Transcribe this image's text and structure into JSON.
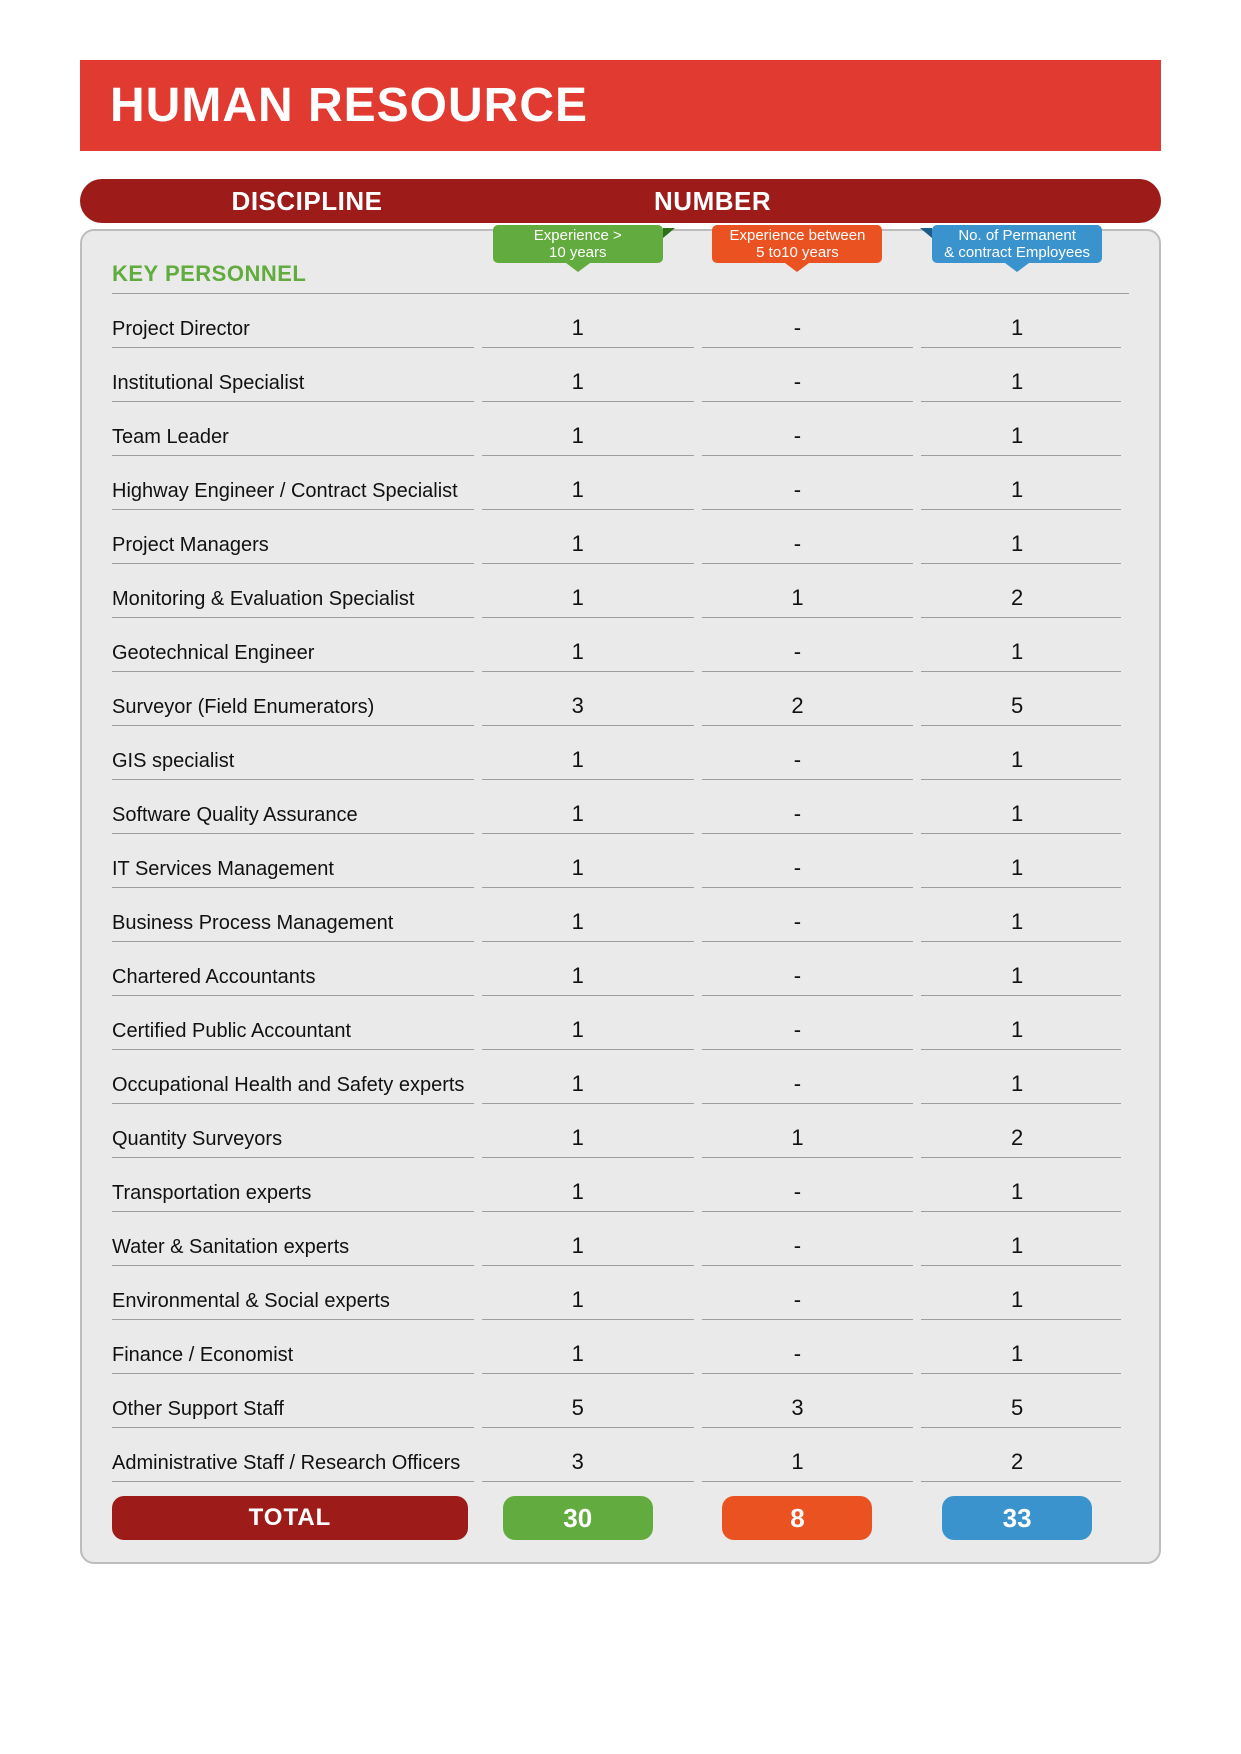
{
  "title": "HUMAN RESOURCE",
  "header": {
    "discipline": "DISCIPLINE",
    "number": "NUMBER"
  },
  "column_tabs": {
    "exp10": {
      "line1": "Experience >",
      "line2": "10 years",
      "color": "#62ab3e"
    },
    "exp5_10": {
      "line1": "Experience between",
      "line2": "5 to10 years",
      "color": "#ea5221"
    },
    "perm": {
      "line1": "No. of Permanent",
      "line2": "& contract Employees",
      "color": "#3a93cc"
    }
  },
  "section_label": "KEY PERSONNEL",
  "rows": [
    {
      "label": "Project Director",
      "c1": "1",
      "c2": "-",
      "c3": "1"
    },
    {
      "label": "Institutional Specialist",
      "c1": "1",
      "c2": "-",
      "c3": "1"
    },
    {
      "label": "Team Leader",
      "c1": "1",
      "c2": "-",
      "c3": "1"
    },
    {
      "label": "Highway Engineer / Contract Specialist",
      "c1": "1",
      "c2": "-",
      "c3": "1"
    },
    {
      "label": "Project Managers",
      "c1": "1",
      "c2": "-",
      "c3": "1"
    },
    {
      "label": "Monitoring & Evaluation Specialist",
      "c1": "1",
      "c2": "1",
      "c3": "2"
    },
    {
      "label": "Geotechnical Engineer",
      "c1": "1",
      "c2": "-",
      "c3": "1"
    },
    {
      "label": "Surveyor (Field Enumerators)",
      "c1": "3",
      "c2": "2",
      "c3": "5"
    },
    {
      "label": "GIS specialist",
      "c1": "1",
      "c2": "-",
      "c3": "1"
    },
    {
      "label": "Software Quality Assurance",
      "c1": "1",
      "c2": "-",
      "c3": "1"
    },
    {
      "label": "IT Services Management",
      "c1": "1",
      "c2": "-",
      "c3": "1"
    },
    {
      "label": "Business Process Management",
      "c1": "1",
      "c2": "-",
      "c3": "1"
    },
    {
      "label": "Chartered Accountants",
      "c1": "1",
      "c2": "-",
      "c3": "1"
    },
    {
      "label": "Certified Public Accountant",
      "c1": "1",
      "c2": "-",
      "c3": "1"
    },
    {
      "label": "Occupational Health and Safety experts",
      "c1": "1",
      "c2": "-",
      "c3": "1"
    },
    {
      "label": "Quantity Surveyors",
      "c1": "1",
      "c2": "1",
      "c3": "2"
    },
    {
      "label": "Transportation experts",
      "c1": "1",
      "c2": "-",
      "c3": "1"
    },
    {
      "label": "Water & Sanitation experts",
      "c1": "1",
      "c2": "-",
      "c3": "1"
    },
    {
      "label": "Environmental & Social experts",
      "c1": "1",
      "c2": "-",
      "c3": "1"
    },
    {
      "label": "Finance / Economist",
      "c1": "1",
      "c2": "-",
      "c3": "1"
    },
    {
      "label": "Other Support Staff",
      "c1": "5",
      "c2": "3",
      "c3": "5"
    },
    {
      "label": "Administrative Staff / Research Officers",
      "c1": "3",
      "c2": "1",
      "c3": "2"
    }
  ],
  "totals": {
    "label": "TOTAL",
    "c1": "30",
    "c2": "8",
    "c3": "33"
  },
  "colors": {
    "title_bg": "#e13a31",
    "header_bg": "#9d1c1a",
    "panel_bg": "#eaeaea",
    "panel_border": "#bdbdbd",
    "row_rule": "#9e9e9e",
    "section_label": "#62ab3e"
  }
}
